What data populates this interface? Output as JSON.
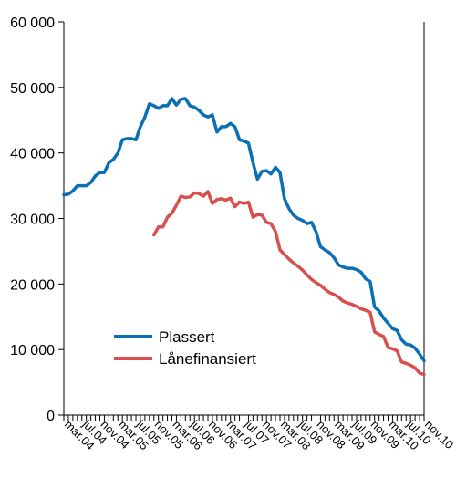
{
  "chart_data": {
    "type": "line",
    "title": "",
    "xlabel": "",
    "ylabel": "",
    "ylim": [
      0,
      60000
    ],
    "y_ticks": [
      0,
      10000,
      20000,
      30000,
      40000,
      50000,
      60000
    ],
    "y_tick_labels": [
      "0",
      "10 000",
      "20 000",
      "30 000",
      "40 000",
      "50 000",
      "60 000"
    ],
    "x_start": "2004-03",
    "x_end": "2010-11",
    "x_tick_labels": [
      "mar.04",
      "jul.04",
      "nov.04",
      "mar.05",
      "jul.05",
      "nov.05",
      "mar.06",
      "jul.06",
      "nov.06",
      "mar.07",
      "jul.07",
      "nov.07",
      "mar.08",
      "jul.08",
      "nov.08",
      "mar.09",
      "jul.09",
      "nov.09",
      "mar.10",
      "jul.10",
      "nov.10"
    ],
    "grid": false,
    "legend_position": "bottom-left",
    "series": [
      {
        "name": "Plassert",
        "color": "#0a6fb5",
        "points": [
          [
            "2004-03",
            33600
          ],
          [
            "2004-04",
            33700
          ],
          [
            "2004-05",
            34200
          ],
          [
            "2004-06",
            35000
          ],
          [
            "2004-07",
            35000
          ],
          [
            "2004-08",
            35000
          ],
          [
            "2004-09",
            35500
          ],
          [
            "2004-10",
            36500
          ],
          [
            "2004-11",
            37000
          ],
          [
            "2004-12",
            37000
          ],
          [
            "2005-01",
            38500
          ],
          [
            "2005-02",
            39000
          ],
          [
            "2005-03",
            40000
          ],
          [
            "2005-04",
            42000
          ],
          [
            "2005-05",
            42200
          ],
          [
            "2005-06",
            42200
          ],
          [
            "2005-07",
            42000
          ],
          [
            "2005-08",
            44000
          ],
          [
            "2005-09",
            45500
          ],
          [
            "2005-10",
            47500
          ],
          [
            "2005-11",
            47200
          ],
          [
            "2005-12",
            46800
          ],
          [
            "2006-01",
            47200
          ],
          [
            "2006-02",
            47200
          ],
          [
            "2006-03",
            48300
          ],
          [
            "2006-04",
            47300
          ],
          [
            "2006-05",
            48200
          ],
          [
            "2006-06",
            48300
          ],
          [
            "2006-07",
            47200
          ],
          [
            "2006-08",
            47000
          ],
          [
            "2006-09",
            46500
          ],
          [
            "2006-10",
            45800
          ],
          [
            "2006-11",
            45500
          ],
          [
            "2006-12",
            45800
          ],
          [
            "2007-01",
            43200
          ],
          [
            "2007-02",
            44000
          ],
          [
            "2007-03",
            44000
          ],
          [
            "2007-04",
            44500
          ],
          [
            "2007-05",
            44000
          ],
          [
            "2007-06",
            42000
          ],
          [
            "2007-07",
            41800
          ],
          [
            "2007-08",
            41500
          ],
          [
            "2007-09",
            38500
          ],
          [
            "2007-10",
            36000
          ],
          [
            "2007-11",
            37200
          ],
          [
            "2007-12",
            37300
          ],
          [
            "2008-01",
            36800
          ],
          [
            "2008-02",
            37800
          ],
          [
            "2008-03",
            37000
          ],
          [
            "2008-04",
            33000
          ],
          [
            "2008-05",
            31500
          ],
          [
            "2008-06",
            30500
          ],
          [
            "2008-07",
            30000
          ],
          [
            "2008-08",
            29700
          ],
          [
            "2008-09",
            29200
          ],
          [
            "2008-10",
            29400
          ],
          [
            "2008-11",
            28000
          ],
          [
            "2008-12",
            25700
          ],
          [
            "2009-01",
            25200
          ],
          [
            "2009-02",
            24800
          ],
          [
            "2009-03",
            24000
          ],
          [
            "2009-04",
            22900
          ],
          [
            "2009-05",
            22600
          ],
          [
            "2009-06",
            22400
          ],
          [
            "2009-07",
            22400
          ],
          [
            "2009-08",
            22200
          ],
          [
            "2009-09",
            21800
          ],
          [
            "2009-10",
            20800
          ],
          [
            "2009-11",
            20400
          ],
          [
            "2009-12",
            16500
          ],
          [
            "2010-01",
            15900
          ],
          [
            "2010-02",
            14800
          ],
          [
            "2010-03",
            14000
          ],
          [
            "2010-04",
            13200
          ],
          [
            "2010-05",
            12900
          ],
          [
            "2010-06",
            11500
          ],
          [
            "2010-07",
            10800
          ],
          [
            "2010-08",
            10700
          ],
          [
            "2010-09",
            10200
          ],
          [
            "2010-10",
            9300
          ],
          [
            "2010-11",
            8300
          ]
        ]
      },
      {
        "name": "Lånefinansiert",
        "color": "#d8504d",
        "points": [
          [
            "2005-11",
            27500
          ],
          [
            "2005-12",
            28700
          ],
          [
            "2006-01",
            28700
          ],
          [
            "2006-02",
            30200
          ],
          [
            "2006-03",
            30800
          ],
          [
            "2006-04",
            32000
          ],
          [
            "2006-05",
            33400
          ],
          [
            "2006-06",
            33200
          ],
          [
            "2006-07",
            33300
          ],
          [
            "2006-08",
            33900
          ],
          [
            "2006-09",
            33800
          ],
          [
            "2006-10",
            33400
          ],
          [
            "2006-11",
            34100
          ],
          [
            "2006-12",
            32300
          ],
          [
            "2007-01",
            32900
          ],
          [
            "2007-02",
            33000
          ],
          [
            "2007-03",
            32800
          ],
          [
            "2007-04",
            33100
          ],
          [
            "2007-05",
            31800
          ],
          [
            "2007-06",
            32500
          ],
          [
            "2007-07",
            32300
          ],
          [
            "2007-08",
            32500
          ],
          [
            "2007-09",
            30200
          ],
          [
            "2007-10",
            30600
          ],
          [
            "2007-11",
            30500
          ],
          [
            "2007-12",
            29400
          ],
          [
            "2008-01",
            29200
          ],
          [
            "2008-02",
            28000
          ],
          [
            "2008-03",
            25200
          ],
          [
            "2008-04",
            24500
          ],
          [
            "2008-05",
            23800
          ],
          [
            "2008-06",
            23200
          ],
          [
            "2008-07",
            22700
          ],
          [
            "2008-08",
            22100
          ],
          [
            "2008-09",
            21400
          ],
          [
            "2008-10",
            20700
          ],
          [
            "2008-11",
            20200
          ],
          [
            "2008-12",
            19800
          ],
          [
            "2009-01",
            19200
          ],
          [
            "2009-02",
            18700
          ],
          [
            "2009-03",
            18400
          ],
          [
            "2009-04",
            18000
          ],
          [
            "2009-05",
            17400
          ],
          [
            "2009-06",
            17100
          ],
          [
            "2009-07",
            16900
          ],
          [
            "2009-08",
            16600
          ],
          [
            "2009-09",
            16200
          ],
          [
            "2009-10",
            16000
          ],
          [
            "2009-11",
            15700
          ],
          [
            "2009-12",
            12700
          ],
          [
            "2010-01",
            12300
          ],
          [
            "2010-02",
            12000
          ],
          [
            "2010-03",
            10300
          ],
          [
            "2010-04",
            10100
          ],
          [
            "2010-05",
            9800
          ],
          [
            "2010-06",
            8100
          ],
          [
            "2010-07",
            7900
          ],
          [
            "2010-08",
            7600
          ],
          [
            "2010-09",
            7200
          ],
          [
            "2010-10",
            6400
          ],
          [
            "2010-11",
            6200
          ]
        ]
      }
    ]
  }
}
